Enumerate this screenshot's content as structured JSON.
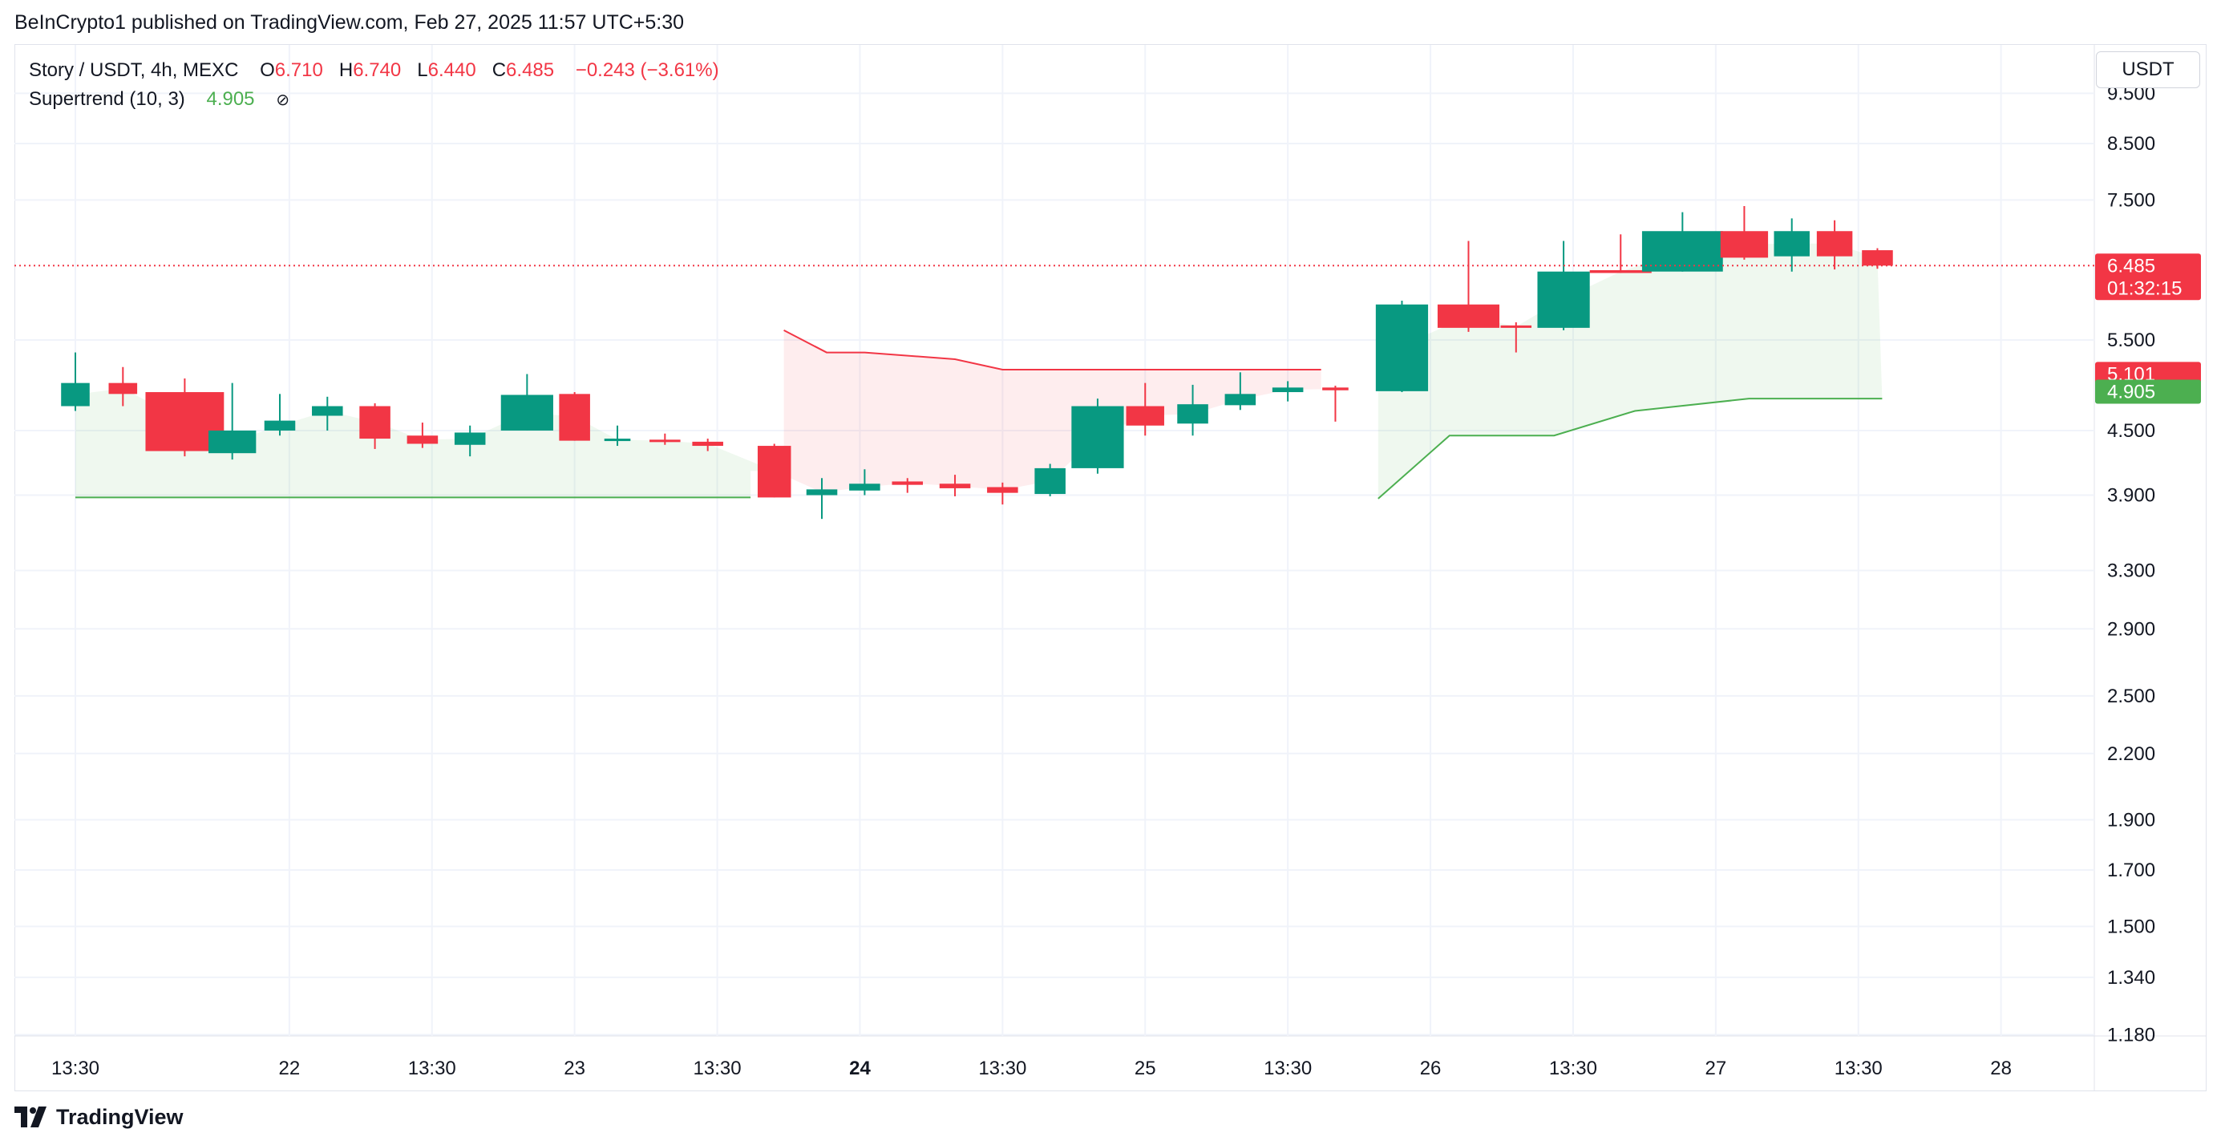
{
  "header": {
    "published_text": "BeInCrypto1 published on TradingView.com, Feb 27, 2025 11:57 UTC+5:30"
  },
  "legend": {
    "symbol": "Story / USDT, 4h, MEXC",
    "o_label": "O",
    "o_value": "6.710",
    "h_label": "H",
    "h_value": "6.740",
    "l_label": "L",
    "l_value": "6.440",
    "c_label": "C",
    "c_value": "6.485",
    "change": "−0.243 (−3.61%)",
    "indicator_name": "Supertrend (10, 3)",
    "indicator_value": "4.905",
    "indicator_hidden_icon": "eye-off-icon"
  },
  "currency": "USDT",
  "footer": {
    "brand": "TradingView",
    "logo_icon": "tradingview-logo-icon"
  },
  "colors": {
    "up": "#089981",
    "down": "#f23645",
    "supertrend_up": "#4caf50",
    "supertrend_down": "#f23645"
  },
  "chart_data": {
    "type": "candlestick",
    "scale": "log",
    "ylim": [
      1.1,
      10.5
    ],
    "y_ticks": [
      "9.500",
      "8.500",
      "7.500",
      "5.500",
      "4.500",
      "3.900",
      "3.300",
      "2.900",
      "2.500",
      "2.200",
      "1.900",
      "1.700",
      "1.500",
      "1.340",
      "1.180"
    ],
    "x_ticks": [
      {
        "label": "13:30",
        "slot": 0,
        "bold": false
      },
      {
        "label": "22",
        "slot": 4.5,
        "bold": false
      },
      {
        "label": "13:30",
        "slot": 7.5,
        "bold": false
      },
      {
        "label": "23",
        "slot": 10.5,
        "bold": false
      },
      {
        "label": "13:30",
        "slot": 13.5,
        "bold": false
      },
      {
        "label": "24",
        "slot": 16.5,
        "bold": true
      },
      {
        "label": "13:30",
        "slot": 19.5,
        "bold": false
      },
      {
        "label": "25",
        "slot": 22.5,
        "bold": false
      },
      {
        "label": "13:30",
        "slot": 25.5,
        "bold": false
      },
      {
        "label": "26",
        "slot": 28.5,
        "bold": false
      },
      {
        "label": "13:30",
        "slot": 31.5,
        "bold": false
      },
      {
        "label": "27",
        "slot": 34.5,
        "bold": false
      },
      {
        "label": "13:30",
        "slot": 37.5,
        "bold": false
      },
      {
        "label": "28",
        "slot": 40.5,
        "bold": false
      }
    ],
    "candles": [
      {
        "o": 4.75,
        "h": 5.35,
        "l": 4.7,
        "c": 5.0
      },
      {
        "o": 5.0,
        "h": 5.18,
        "l": 4.75,
        "c": 4.88
      },
      {
        "o": 4.9,
        "h": 5.05,
        "l": 4.25,
        "c": 4.3
      },
      {
        "o": 4.28,
        "h": 5.0,
        "l": 4.22,
        "c": 4.5
      },
      {
        "o": 4.5,
        "h": 4.88,
        "l": 4.45,
        "c": 4.6
      },
      {
        "o": 4.65,
        "h": 4.85,
        "l": 4.5,
        "c": 4.75
      },
      {
        "o": 4.75,
        "h": 4.78,
        "l": 4.32,
        "c": 4.42
      },
      {
        "o": 4.45,
        "h": 4.58,
        "l": 4.33,
        "c": 4.37
      },
      {
        "o": 4.36,
        "h": 4.55,
        "l": 4.25,
        "c": 4.48
      },
      {
        "o": 4.5,
        "h": 5.1,
        "l": 4.5,
        "c": 4.87
      },
      {
        "o": 4.88,
        "h": 4.9,
        "l": 4.4,
        "c": 4.4
      },
      {
        "o": 4.4,
        "h": 4.55,
        "l": 4.35,
        "c": 4.42
      },
      {
        "o": 4.41,
        "h": 4.47,
        "l": 4.36,
        "c": 4.39
      },
      {
        "o": 4.39,
        "h": 4.42,
        "l": 4.3,
        "c": 4.35
      },
      {
        "o": 4.35,
        "h": 4.37,
        "l": 3.88,
        "c": 3.88
      },
      {
        "o": 3.9,
        "h": 4.05,
        "l": 3.7,
        "c": 3.95
      },
      {
        "o": 3.94,
        "h": 4.13,
        "l": 3.9,
        "c": 4.0
      },
      {
        "o": 4.02,
        "h": 4.05,
        "l": 3.92,
        "c": 3.99
      },
      {
        "o": 4.0,
        "h": 4.08,
        "l": 3.89,
        "c": 3.96
      },
      {
        "o": 3.97,
        "h": 4.01,
        "l": 3.82,
        "c": 3.92
      },
      {
        "o": 3.91,
        "h": 4.18,
        "l": 3.89,
        "c": 4.14
      },
      {
        "o": 4.14,
        "h": 4.83,
        "l": 4.09,
        "c": 4.75
      },
      {
        "o": 4.75,
        "h": 5.0,
        "l": 4.45,
        "c": 4.55
      },
      {
        "o": 4.57,
        "h": 4.98,
        "l": 4.45,
        "c": 4.77
      },
      {
        "o": 4.76,
        "h": 5.12,
        "l": 4.71,
        "c": 4.88
      },
      {
        "o": 4.9,
        "h": 5.02,
        "l": 4.8,
        "c": 4.95
      },
      {
        "o": 4.95,
        "h": 4.97,
        "l": 4.59,
        "c": 4.92
      },
      {
        "o": 4.91,
        "h": 6.0,
        "l": 4.9,
        "c": 5.95
      },
      {
        "o": 5.95,
        "h": 6.85,
        "l": 5.6,
        "c": 5.65
      },
      {
        "o": 5.68,
        "h": 5.72,
        "l": 5.35,
        "c": 5.65
      },
      {
        "o": 5.65,
        "h": 6.85,
        "l": 5.62,
        "c": 6.4
      },
      {
        "o": 6.42,
        "h": 6.95,
        "l": 6.38,
        "c": 6.38
      },
      {
        "o": 6.4,
        "h": 7.3,
        "l": 6.4,
        "c": 7.0
      },
      {
        "o": 7.0,
        "h": 7.4,
        "l": 6.57,
        "c": 6.6
      },
      {
        "o": 6.62,
        "h": 7.2,
        "l": 6.4,
        "c": 7.0
      },
      {
        "o": 7.0,
        "h": 7.17,
        "l": 6.43,
        "c": 6.62
      },
      {
        "o": 6.71,
        "h": 6.74,
        "l": 6.44,
        "c": 6.485
      }
    ],
    "candle_slots": [
      0,
      1,
      2.3,
      3.3,
      4.3,
      5.3,
      6.3,
      7.3,
      8.3,
      9.5,
      10.5,
      11.4,
      12.4,
      13.3,
      14.7,
      15.7,
      16.6,
      17.5,
      18.5,
      19.5,
      20.5,
      21.5,
      22.5,
      23.5,
      24.5,
      25.5,
      26.5,
      27.9,
      29.3,
      30.3,
      31.3,
      32.5,
      33.8,
      35.1,
      36.1,
      37.0,
      37.9
    ],
    "candle_width_slots": [
      0.6,
      0.6,
      1.65,
      1.0,
      0.65,
      0.65,
      0.65,
      0.65,
      0.65,
      1.1,
      0.65,
      0.55,
      0.65,
      0.65,
      0.7,
      0.65,
      0.65,
      0.65,
      0.65,
      0.65,
      0.65,
      1.1,
      0.8,
      0.65,
      0.65,
      0.65,
      0.55,
      1.1,
      1.3,
      0.65,
      1.1,
      1.3,
      1.7,
      1.0,
      0.75,
      0.75,
      0.65
    ],
    "supertrend": {
      "up_segments": [
        {
          "points": [
            [
              0,
              3.88
            ],
            [
              14.2,
              3.88
            ]
          ]
        },
        {
          "points": [
            [
              27.4,
              3.87
            ],
            [
              28.9,
              4.45
            ],
            [
              31.1,
              4.45
            ],
            [
              32.8,
              4.7
            ],
            [
              35.2,
              4.83
            ],
            [
              38.0,
              4.83
            ]
          ]
        }
      ],
      "down_segments": [
        {
          "points": [
            [
              14.9,
              5.62
            ],
            [
              15.8,
              5.35
            ],
            [
              16.6,
              5.35
            ],
            [
              18.5,
              5.27
            ],
            [
              19.5,
              5.15
            ],
            [
              26.2,
              5.15
            ]
          ]
        }
      ],
      "current_value": "4.905"
    },
    "price_labels": {
      "last_price": "6.485",
      "countdown": "01:32:15",
      "supertrend_down_value": "5.101",
      "supertrend_up_value": "4.905"
    }
  }
}
